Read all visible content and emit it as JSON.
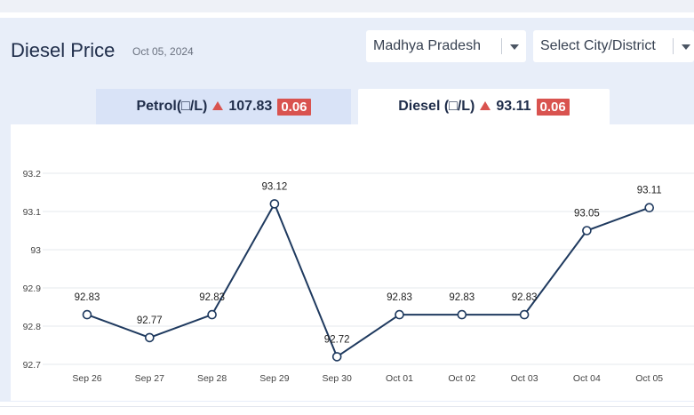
{
  "header": {
    "title": "Diesel Price",
    "date": "Oct 05, 2024"
  },
  "filters": {
    "state": "Madhya Pradesh",
    "city_placeholder": "Select City/District"
  },
  "tabs": [
    {
      "label": "Petrol(□/L)",
      "price": "107.83",
      "change": "0.06",
      "trend": "up",
      "active": false
    },
    {
      "label": "Diesel (□/L)",
      "price": "93.11",
      "change": "0.06",
      "trend": "up",
      "active": true
    }
  ],
  "colors": {
    "line": "#1f3a5f",
    "badge": "#d9534f",
    "panel": "#e8eef9",
    "active_tab": "#ffffff",
    "inactive_tab": "#d9e3f7"
  },
  "icons": {
    "trend": "triangle-up-icon",
    "dropdown": "chevron-down-icon"
  },
  "chart_data": {
    "type": "line",
    "title": "",
    "xlabel": "",
    "ylabel": "",
    "categories": [
      "Sep 26",
      "Sep 27",
      "Sep 28",
      "Sep 29",
      "Sep 30",
      "Oct 01",
      "Oct 02",
      "Oct 03",
      "Oct 04",
      "Oct 05"
    ],
    "series": [
      {
        "values": [
          92.83,
          92.77,
          92.83,
          93.12,
          92.72,
          92.83,
          92.83,
          92.83,
          93.05,
          93.11
        ]
      }
    ],
    "point_labels": [
      "92.83",
      "92.77",
      "92.83",
      "93.12",
      "92.72",
      "92.83",
      "92.83",
      "92.83",
      "93.05",
      "93.11"
    ],
    "y_ticks": [
      "92.7",
      "92.8",
      "92.9",
      "93",
      "93.1",
      "93.2"
    ],
    "y_tick_values": [
      92.7,
      92.8,
      92.9,
      93.0,
      93.1,
      93.2
    ],
    "ylim": [
      92.7,
      93.2
    ],
    "grid": true,
    "legend": "none"
  }
}
